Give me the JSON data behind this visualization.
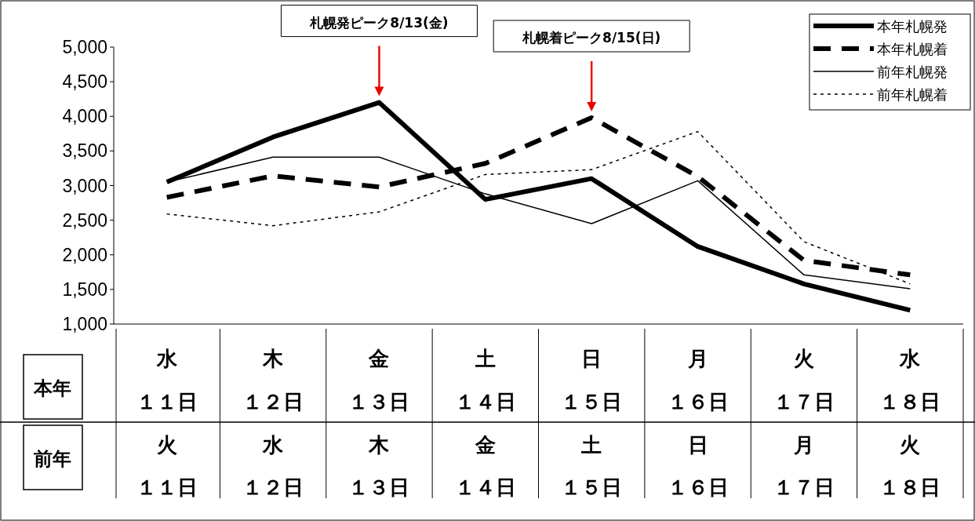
{
  "chart_data": {
    "type": "line",
    "categories": [
      "水１１日",
      "木１２日",
      "金１３日",
      "土１４日",
      "日１５日",
      "月１６日",
      "火１７日",
      "水１８日"
    ],
    "series": [
      {
        "name": "本年札幌発",
        "color": "#000000",
        "line_style": "solid",
        "values": [
          3050,
          3700,
          4200,
          2800,
          3100,
          2120,
          1580,
          1200
        ]
      },
      {
        "name": "本年札幌着",
        "color": "#000000",
        "line_style": "dashed",
        "values": [
          2830,
          3140,
          2980,
          3320,
          3980,
          3130,
          1920,
          1710
        ]
      },
      {
        "name": "前年札幌発",
        "color": "#000000",
        "line_style": "solid",
        "values": [
          3050,
          3410,
          3410,
          2880,
          2450,
          3070,
          1710,
          1510
        ]
      },
      {
        "name": "前年札幌着",
        "color": "#000000",
        "line_style": "dotted",
        "values": [
          2590,
          2420,
          2620,
          3160,
          3230,
          3780,
          2190,
          1580
        ]
      }
    ],
    "ylim": [
      1000,
      5000
    ],
    "yticks": [
      {
        "value": 1000,
        "label": "1,000"
      },
      {
        "value": 1500,
        "label": "1,500"
      },
      {
        "value": 2000,
        "label": "2,000"
      },
      {
        "value": 2500,
        "label": "2,500"
      },
      {
        "value": 3000,
        "label": "3,000"
      },
      {
        "value": 3500,
        "label": "3,500"
      },
      {
        "value": 4000,
        "label": "4,000"
      },
      {
        "value": 4500,
        "label": "4,500"
      },
      {
        "value": 5000,
        "label": "5,000"
      }
    ],
    "legend": "top right",
    "grid": false,
    "annotations": [
      "本年",
      "前年",
      "札幌発ピーク8/13(金)",
      "札幌着ピーク8/15(日)",
      "火１１日",
      "水１２日",
      "木１３日",
      "金１４日",
      "土１５日",
      "日１６日",
      "月１７日",
      "火１８日"
    ]
  }
}
